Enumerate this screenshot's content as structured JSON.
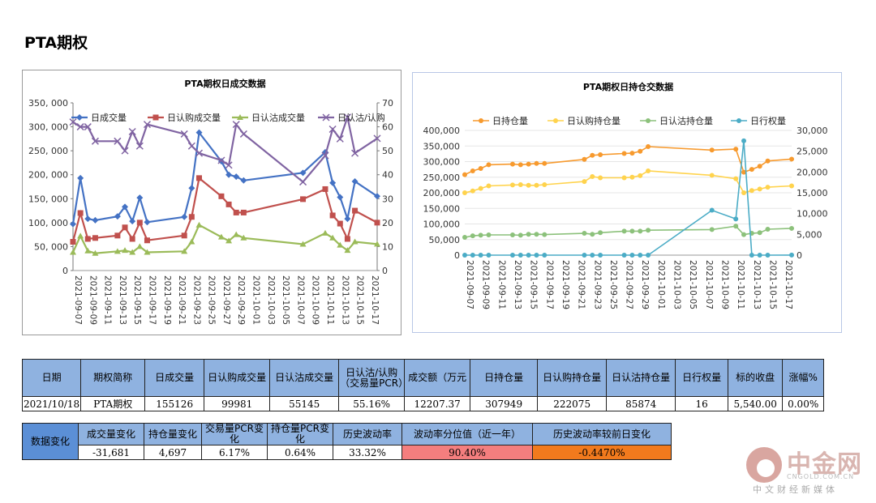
{
  "page_title": "PTA期权",
  "chart_data": [
    {
      "type": "line",
      "title": "PTA期权日成交数据",
      "x": [
        "2021-09-07",
        "2021-09-08",
        "2021-09-09",
        "2021-09-10",
        "2021-09-13",
        "2021-09-14",
        "2021-09-15",
        "2021-09-16",
        "2021-09-17",
        "2021-09-22",
        "2021-09-23",
        "2021-09-24",
        "2021-09-27",
        "2021-09-28",
        "2021-09-29",
        "2021-09-30",
        "2021-10-08",
        "2021-10-11",
        "2021-10-12",
        "2021-10-13",
        "2021-10-14",
        "2021-10-15",
        "2021-10-18"
      ],
      "xtick_labels": [
        "2021-09-07",
        "2021-09-09",
        "2021-09-11",
        "2021-09-13",
        "2021-09-15",
        "2021-09-17",
        "2021-09-19",
        "2021-09-21",
        "2021-09-23",
        "2021-09-25",
        "2021-09-27",
        "2021-09-29",
        "2021-10-01",
        "2021-10-03",
        "2021-10-05",
        "2021-10-07",
        "2021-10-09",
        "2021-10-11",
        "2021-10-13",
        "2021-10-15",
        "2021-10-17"
      ],
      "ylim": [
        0,
        350000
      ],
      "yticks": [
        "0",
        "50, 000",
        "100, 000",
        "150, 000",
        "200, 000",
        "250, 000",
        "300, 000",
        "350, 000"
      ],
      "y2lim": [
        0,
        70
      ],
      "y2ticks": [
        "0",
        "10",
        "20",
        "30",
        "40",
        "50",
        "60",
        "70"
      ],
      "legend": "top",
      "series": [
        {
          "name": "日成交量",
          "axis": "left",
          "color": "#4472c4",
          "marker": "diamond",
          "values": [
            97000,
            193000,
            108000,
            105000,
            113000,
            133000,
            103000,
            152000,
            101000,
            112000,
            172000,
            288000,
            228000,
            200000,
            196000,
            188000,
            204000,
            247000,
            183000,
            153000,
            108000,
            186000,
            155126
          ]
        },
        {
          "name": "日认购成交量",
          "axis": "left",
          "color": "#c0504d",
          "marker": "square",
          "values": [
            60000,
            120000,
            66000,
            68000,
            73000,
            90000,
            66000,
            100000,
            63000,
            73000,
            112000,
            193000,
            155000,
            138000,
            121000,
            121000,
            149000,
            170000,
            115000,
            98000,
            66000,
            125000,
            99981
          ]
        },
        {
          "name": "日认沽成交量",
          "axis": "left",
          "color": "#9bbb59",
          "marker": "triangle",
          "values": [
            38000,
            72000,
            41000,
            36000,
            40000,
            42000,
            38000,
            50000,
            38000,
            40000,
            60000,
            95000,
            70000,
            62000,
            75000,
            68000,
            55000,
            78000,
            68000,
            53000,
            42000,
            60000,
            55145
          ]
        },
        {
          "name": "日认沽/认购",
          "axis": "right",
          "color": "#8064a2",
          "marker": "x",
          "values": [
            62,
            60,
            60,
            54,
            54,
            50,
            58,
            52,
            61,
            57,
            52,
            49,
            46,
            44,
            61,
            57,
            37,
            48,
            59,
            55,
            64,
            49,
            55.16
          ]
        }
      ]
    },
    {
      "type": "line",
      "title": "PTA期权日持仓交数据",
      "x": [
        "2021-09-07",
        "2021-09-08",
        "2021-09-09",
        "2021-09-10",
        "2021-09-13",
        "2021-09-14",
        "2021-09-15",
        "2021-09-16",
        "2021-09-17",
        "2021-09-22",
        "2021-09-23",
        "2021-09-24",
        "2021-09-27",
        "2021-09-28",
        "2021-09-29",
        "2021-09-30",
        "2021-10-08",
        "2021-10-11",
        "2021-10-12",
        "2021-10-13",
        "2021-10-14",
        "2021-10-15",
        "2021-10-18"
      ],
      "xtick_labels": [
        "2021-09-07",
        "2021-09-09",
        "2021-09-11",
        "2021-09-13",
        "2021-09-15",
        "2021-09-17",
        "2021-09-19",
        "2021-09-21",
        "2021-09-23",
        "2021-09-25",
        "2021-09-27",
        "2021-09-29",
        "2021-10-01",
        "2021-10-03",
        "2021-10-05",
        "2021-10-07",
        "2021-10-09",
        "2021-10-11",
        "2021-10-13",
        "2021-10-15",
        "2021-10-17"
      ],
      "ylim": [
        0,
        400000
      ],
      "yticks": [
        "0",
        "50,000",
        "100,000",
        "150,000",
        "200,000",
        "250,000",
        "300,000",
        "350,000",
        "400,000"
      ],
      "y2lim": [
        0,
        30000
      ],
      "y2ticks": [
        "0",
        "5,000",
        "10,000",
        "15,000",
        "20,000",
        "25,000",
        "30,000"
      ],
      "legend": "top",
      "series": [
        {
          "name": "日持仓量",
          "axis": "left",
          "color": "#f79a2e",
          "values": [
            258000,
            270000,
            278000,
            290000,
            292000,
            290000,
            292000,
            294000,
            294000,
            307000,
            320000,
            322000,
            326000,
            327000,
            333000,
            348000,
            337000,
            340000,
            266000,
            275000,
            285000,
            302000,
            307949
          ]
        },
        {
          "name": "日认购持仓量",
          "axis": "left",
          "color": "#ffd34d",
          "values": [
            200000,
            206000,
            214000,
            222000,
            225000,
            226000,
            224000,
            224000,
            226000,
            236000,
            252000,
            248000,
            248000,
            250000,
            255000,
            270000,
            256000,
            245000,
            200000,
            207000,
            212000,
            218000,
            222075
          ]
        },
        {
          "name": "日认沽持仓量",
          "axis": "left",
          "color": "#8cc17b",
          "values": [
            57000,
            62000,
            64000,
            65000,
            65000,
            64000,
            67000,
            67000,
            66000,
            70000,
            67000,
            72000,
            77000,
            77000,
            77000,
            80000,
            82000,
            93000,
            66000,
            70000,
            72000,
            83000,
            85874
          ]
        },
        {
          "name": "日行权量",
          "axis": "right",
          "color": "#4bacc6",
          "values": [
            0,
            0,
            0,
            0,
            0,
            0,
            0,
            0,
            0,
            0,
            0,
            0,
            0,
            0,
            0,
            0,
            10800,
            8700,
            27500,
            0,
            0,
            0,
            16
          ]
        }
      ]
    }
  ],
  "table1": {
    "headers": [
      "日期",
      "期权简称",
      "日成交量",
      "日认购成交量",
      "日认沽成交量",
      "日认沽/认购（交易量PCR）",
      "成交额（万元",
      "日持仓量",
      "日认购持仓量",
      "日认沽持仓量",
      "日行权量",
      "标的收盘",
      "涨幅%"
    ],
    "row": [
      "2021/10/18",
      "PTA期权",
      "155126",
      "99981",
      "55145",
      "55.16%",
      "12207.37",
      "307949",
      "222075",
      "85874",
      "16",
      "5,540.00",
      "0.00%"
    ]
  },
  "table2": {
    "side_label": "数据变化",
    "headers": [
      "成交量变化",
      "持仓量变化",
      "交易量PCR变化",
      "持仓量PCR变化",
      "历史波动率",
      "波动率分位值（近一年）",
      "历史波动率较前日变化"
    ],
    "row": [
      "-31,681",
      "4,697",
      "6.17%",
      "0.64%",
      "33.32%",
      "90.40%",
      "-0.4470%"
    ],
    "highlight_colors": {
      "red": "#f47e7e",
      "orange": "#f27a1d"
    }
  },
  "watermark": {
    "name": "中金网",
    "domain": "CNGOLD.COM.CN",
    "slogan": "中文财经新媒体"
  }
}
